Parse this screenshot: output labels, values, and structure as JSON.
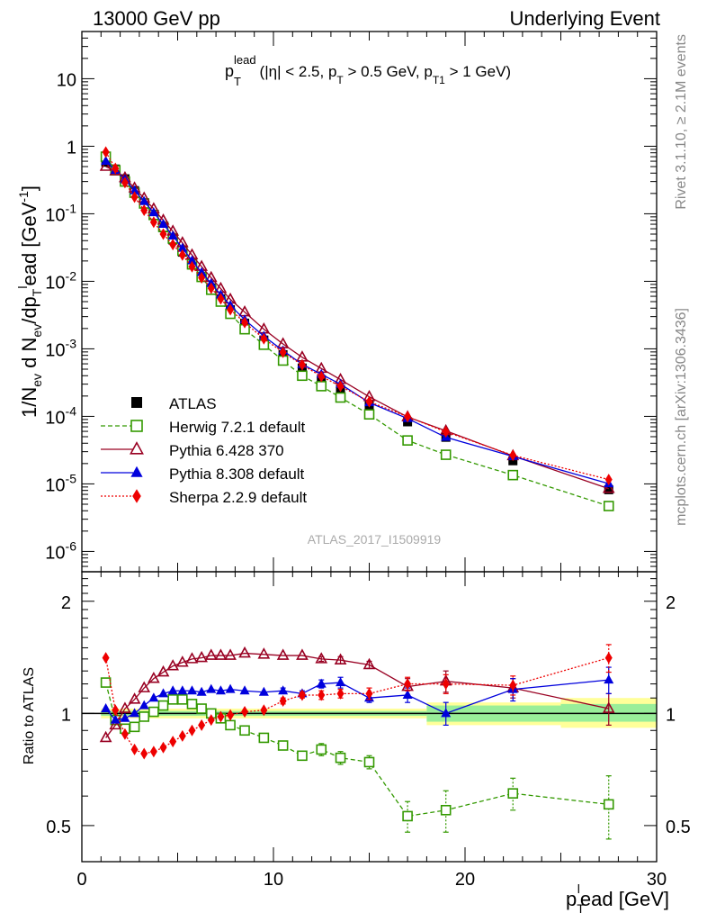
{
  "header": {
    "energy": "13000 GeV pp",
    "category": "Underlying Event"
  },
  "side_labels": {
    "rivet": "Rivet 3.1.10, ≥ 2.1M events",
    "mcplots": "mcplots.cern.ch [arXiv:1306.3436]"
  },
  "watermark": "ATLAS_2017_I1509919",
  "colors": {
    "atlas": "#000000",
    "herwig": "#339900",
    "pythia6": "#990022",
    "pythia8": "#0000dd",
    "sherpa": "#ee0000",
    "band_green": "#99ee99",
    "band_yellow": "#ffff99"
  },
  "chart_data": [
    {
      "type": "scatter",
      "panel": "main",
      "title_parts": {
        "main": "p",
        "sup": "lead",
        "sub": "T",
        "cut": "(|η| < 2.5, p",
        "cut_sub": "T",
        "cut2": " > 0.5 GeV, p",
        "cut2_sub": "T1",
        "cut3": " > 1 GeV)"
      },
      "ylabel": "1/N_ev d N_ev/dp_T^lead [GeV^-1]",
      "ylabel_parts": {
        "a": "1/N",
        "a_sub": "ev",
        "b": " d N",
        "b_sub": "ev",
        "c": "/dp",
        "c_sub": "T",
        "c_sup": "l",
        "d": "ead [GeV",
        "d_sup": "-1",
        "e": "]"
      },
      "xlim": [
        0,
        30
      ],
      "ylim": [
        5e-07,
        50
      ],
      "log_y": true,
      "y_tick_labels": [
        "10^-6",
        "10^-5",
        "10^-4",
        "10^-3",
        "10^-2",
        "10^-1",
        "1",
        "10"
      ],
      "legend_placement": "bottom-left",
      "series": [
        {
          "name": "ATLAS",
          "key": "atlas",
          "marker": "square-filled",
          "x": [
            1.25,
            1.75,
            2.25,
            2.75,
            3.25,
            3.75,
            4.25,
            4.75,
            5.25,
            5.75,
            6.25,
            6.75,
            7.25,
            7.75,
            8.5,
            9.5,
            10.5,
            11.5,
            12.5,
            13.5,
            15.0,
            17.0,
            19.0,
            22.5,
            27.5
          ],
          "values": [
            0.58,
            0.46,
            0.33,
            0.22,
            0.145,
            0.095,
            0.062,
            0.041,
            0.027,
            0.0175,
            0.0118,
            0.008,
            0.0055,
            0.0038,
            0.0024,
            0.00135,
            0.00082,
            0.00052,
            0.00035,
            0.00025,
            0.000145,
            8.3e-05,
            4.9e-05,
            2.2e-05,
            8.2e-06
          ]
        },
        {
          "name": "Herwig 7.2.1 default",
          "key": "herwig",
          "marker": "square-open",
          "line": "dashed",
          "x": [
            1.25,
            1.75,
            2.25,
            2.75,
            3.25,
            3.75,
            4.25,
            4.75,
            5.25,
            5.75,
            6.25,
            6.75,
            7.25,
            7.75,
            8.5,
            9.5,
            10.5,
            11.5,
            12.5,
            13.5,
            15.0,
            17.0,
            19.0,
            22.5,
            27.5
          ],
          "values": [
            0.7,
            0.44,
            0.3,
            0.205,
            0.142,
            0.096,
            0.064,
            0.043,
            0.0285,
            0.0178,
            0.0116,
            0.0075,
            0.005,
            0.0033,
            0.00195,
            0.00115,
            0.00067,
            0.0004,
            0.00028,
            0.00019,
            0.000107,
            4.4e-05,
            2.7e-05,
            1.35e-05,
            4.7e-06
          ]
        },
        {
          "name": "Pythia 6.428 370",
          "key": "pythia6",
          "marker": "triangle-open",
          "line": "solid",
          "x": [
            1.25,
            1.75,
            2.25,
            2.75,
            3.25,
            3.75,
            4.25,
            4.75,
            5.25,
            5.75,
            6.25,
            6.75,
            7.25,
            7.75,
            8.5,
            9.5,
            10.5,
            11.5,
            12.5,
            13.5,
            15.0,
            17.0,
            19.0,
            22.5,
            27.5
          ],
          "values": [
            0.5,
            0.43,
            0.34,
            0.24,
            0.17,
            0.118,
            0.08,
            0.055,
            0.037,
            0.0245,
            0.0165,
            0.0113,
            0.0078,
            0.0054,
            0.0035,
            0.00195,
            0.00118,
            0.00075,
            0.00051,
            0.00035,
            0.000195,
            9.8e-05,
            6.1e-05,
            2.6e-05,
            8.5e-06
          ]
        },
        {
          "name": "Pythia 8.308 default",
          "key": "pythia8",
          "marker": "triangle-filled",
          "line": "solid",
          "x": [
            1.25,
            1.75,
            2.25,
            2.75,
            3.25,
            3.75,
            4.25,
            4.75,
            5.25,
            5.75,
            6.25,
            6.75,
            7.25,
            7.75,
            8.5,
            9.5,
            10.5,
            11.5,
            12.5,
            13.5,
            15.0,
            17.0,
            19.0,
            22.5,
            27.5
          ],
          "values": [
            0.6,
            0.44,
            0.32,
            0.22,
            0.152,
            0.104,
            0.07,
            0.047,
            0.031,
            0.0202,
            0.0135,
            0.0093,
            0.0063,
            0.0044,
            0.0027,
            0.00154,
            0.00094,
            0.00059,
            0.00042,
            0.0003,
            0.00016,
            9.3e-05,
            4.9e-05,
            2.55e-05,
            1.01e-05
          ]
        },
        {
          "name": "Sherpa 2.2.9 default",
          "key": "sherpa",
          "marker": "diamond-filled",
          "line": "dotted",
          "x": [
            1.25,
            1.75,
            2.25,
            2.75,
            3.25,
            3.75,
            4.25,
            4.75,
            5.25,
            5.75,
            6.25,
            6.75,
            7.25,
            7.75,
            8.5,
            9.5,
            10.5,
            11.5,
            12.5,
            13.5,
            15.0,
            17.0,
            19.0,
            22.5,
            27.5
          ],
          "values": [
            0.82,
            0.47,
            0.29,
            0.177,
            0.113,
            0.075,
            0.05,
            0.035,
            0.0245,
            0.0164,
            0.0113,
            0.0079,
            0.0055,
            0.0038,
            0.00245,
            0.00141,
            0.00089,
            0.00058,
            0.00039,
            0.00028,
            0.000165,
            9.9e-05,
            5.9e-05,
            2.65e-05,
            1.16e-05
          ]
        }
      ]
    },
    {
      "type": "scatter",
      "panel": "ratio",
      "ylabel": "Ratio to ATLAS",
      "xlabel": "p_T^lead [GeV]",
      "xlabel_parts": {
        "a": "p",
        "a_sub": "T",
        "a_sup": "l",
        "b": "ead [GeV]"
      },
      "xlim": [
        0,
        30
      ],
      "ylim": [
        0.4,
        2.4
      ],
      "log_y": true,
      "x_tick_labels": [
        "0",
        "10",
        "20",
        "30"
      ],
      "y_tick_labels": [
        "0.5",
        "1",
        "2"
      ],
      "bands": [
        {
          "x": [
            1.0,
            18.0
          ],
          "yellow": [
            0.97,
            1.03
          ],
          "green": [
            0.985,
            1.015
          ]
        },
        {
          "x": [
            18.0,
            20.0
          ],
          "yellow": [
            0.93,
            1.07
          ],
          "green": [
            0.95,
            1.05
          ]
        },
        {
          "x": [
            20.0,
            25.0
          ],
          "yellow": [
            0.93,
            1.07
          ],
          "green": [
            0.95,
            1.05
          ]
        },
        {
          "x": [
            25.0,
            30.0
          ],
          "yellow": [
            0.915,
            1.1
          ],
          "green": [
            0.95,
            1.06
          ]
        }
      ],
      "series": [
        {
          "name": "Herwig 7.2.1 default",
          "key": "herwig",
          "marker": "square-open",
          "line": "dashed",
          "x": [
            1.25,
            1.75,
            2.25,
            2.75,
            3.25,
            3.75,
            4.25,
            4.75,
            5.25,
            5.75,
            6.25,
            6.75,
            7.25,
            7.75,
            8.5,
            9.5,
            10.5,
            11.5,
            12.5,
            13.5,
            15.0,
            17.0,
            19.0,
            22.5,
            27.5
          ],
          "values": [
            1.21,
            0.96,
            0.91,
            0.92,
            0.98,
            1.01,
            1.05,
            1.09,
            1.09,
            1.06,
            1.03,
            1.0,
            0.97,
            0.93,
            0.9,
            0.86,
            0.82,
            0.77,
            0.8,
            0.76,
            0.74,
            0.53,
            0.55,
            0.61,
            0.57
          ],
          "err": [
            0,
            0,
            0,
            0,
            0,
            0,
            0,
            0,
            0,
            0,
            0,
            0,
            0,
            0,
            0,
            0.01,
            0.015,
            0.02,
            0.03,
            0.03,
            0.03,
            0.05,
            0.07,
            0.06,
            0.11
          ]
        },
        {
          "name": "Pythia 6.428 370",
          "key": "pythia6",
          "marker": "triangle-open",
          "line": "solid",
          "x": [
            1.25,
            1.75,
            2.25,
            2.75,
            3.25,
            3.75,
            4.25,
            4.75,
            5.25,
            5.75,
            6.25,
            6.75,
            7.25,
            7.75,
            8.5,
            9.5,
            10.5,
            11.5,
            12.5,
            13.5,
            15.0,
            17.0,
            19.0,
            22.5,
            27.5
          ],
          "values": [
            0.86,
            0.93,
            1.03,
            1.09,
            1.17,
            1.24,
            1.29,
            1.34,
            1.37,
            1.4,
            1.41,
            1.43,
            1.43,
            1.43,
            1.45,
            1.44,
            1.43,
            1.43,
            1.4,
            1.39,
            1.35,
            1.18,
            1.22,
            1.17,
            1.03
          ],
          "err": [
            0,
            0,
            0,
            0,
            0,
            0,
            0,
            0,
            0,
            0,
            0,
            0,
            0,
            0,
            0,
            0,
            0,
            0,
            0.02,
            0.03,
            0.03,
            0.06,
            0.08,
            0.07,
            0.1
          ]
        },
        {
          "name": "Pythia 8.308 default",
          "key": "pythia8",
          "marker": "triangle-filled",
          "line": "solid",
          "x": [
            1.25,
            1.75,
            2.25,
            2.75,
            3.25,
            3.75,
            4.25,
            4.75,
            5.25,
            5.75,
            6.25,
            6.75,
            7.25,
            7.75,
            8.5,
            9.5,
            10.5,
            11.5,
            12.5,
            13.5,
            15.0,
            17.0,
            19.0,
            22.5,
            27.5
          ],
          "values": [
            1.03,
            0.96,
            0.97,
            1.0,
            1.05,
            1.1,
            1.13,
            1.15,
            1.15,
            1.15,
            1.14,
            1.16,
            1.15,
            1.16,
            1.15,
            1.14,
            1.15,
            1.13,
            1.2,
            1.21,
            1.1,
            1.12,
            1.0,
            1.16,
            1.23
          ],
          "err": [
            0,
            0,
            0,
            0,
            0,
            0,
            0,
            0,
            0,
            0,
            0,
            0,
            0,
            0,
            0,
            0,
            0.02,
            0.02,
            0.03,
            0.04,
            0.03,
            0.05,
            0.07,
            0.08,
            0.1
          ]
        },
        {
          "name": "Sherpa 2.2.9 default",
          "key": "sherpa",
          "marker": "diamond-filled",
          "line": "dotted",
          "x": [
            1.25,
            1.75,
            2.25,
            2.75,
            3.25,
            3.75,
            4.25,
            4.75,
            5.25,
            5.75,
            6.25,
            6.75,
            7.25,
            7.75,
            8.5,
            9.5,
            10.5,
            11.5,
            12.5,
            13.5,
            15.0,
            17.0,
            19.0,
            22.5,
            27.5
          ],
          "values": [
            1.41,
            1.02,
            0.88,
            0.8,
            0.78,
            0.79,
            0.81,
            0.84,
            0.87,
            0.9,
            0.93,
            0.96,
            0.98,
            0.99,
            1.01,
            1.02,
            1.08,
            1.12,
            1.12,
            1.13,
            1.13,
            1.2,
            1.2,
            1.19,
            1.41
          ],
          "err": [
            0,
            0,
            0,
            0,
            0,
            0,
            0,
            0,
            0,
            0,
            0,
            0,
            0,
            0,
            0,
            0,
            0.02,
            0.02,
            0.03,
            0.03,
            0.04,
            0.05,
            0.07,
            0.07,
            0.12
          ]
        }
      ]
    }
  ]
}
